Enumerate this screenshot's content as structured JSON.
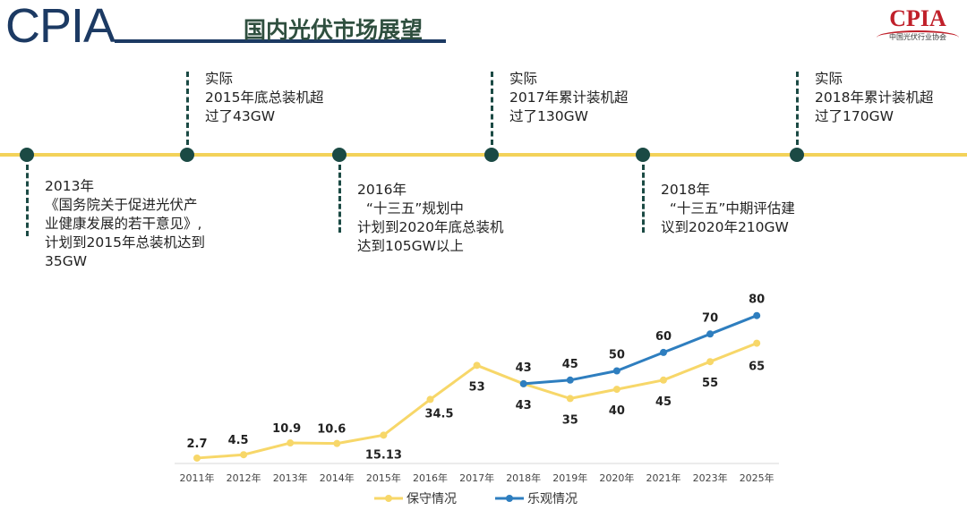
{
  "header": {
    "logo": "CPIA",
    "title": "国内光伏市场展望"
  },
  "brand_logo": {
    "text": "CPIA",
    "subtitle": "中国光伏行业协会"
  },
  "timeline": [
    {
      "pos": "below",
      "text": "2013年\n《国务院关于促进光伏产\n业健康发展的若干意见》,\n计划到2015年总装机达到\n35GW"
    },
    {
      "pos": "above",
      "text": "实际\n2015年底总装机超\n过了43GW"
    },
    {
      "pos": "below",
      "text": "2016年\n  “十三五”规划中\n计划到2020年底总装机\n达到105GW以上"
    },
    {
      "pos": "above",
      "text": "实际\n2017年累计装机超\n过了130GW"
    },
    {
      "pos": "below",
      "text": "2018年\n  “十三五”中期评估建\n议到2020年210GW"
    },
    {
      "pos": "above",
      "text": "实际\n2018年累计装机超\n过了170GW"
    }
  ],
  "colors": {
    "conservative": "#f7d769",
    "optimistic": "#2e7ebf",
    "timeline": "#f3d25a",
    "node": "#1b4a44"
  },
  "chart_data": {
    "type": "line",
    "categories": [
      "2011年",
      "2012年",
      "2013年",
      "2014年",
      "2015年",
      "2016年",
      "2017年",
      "2018年",
      "2019年",
      "2020年",
      "2021年",
      "2023年",
      "2025年"
    ],
    "series": [
      {
        "name": "保守情况",
        "values": [
          2.7,
          4.5,
          10.9,
          10.6,
          15.13,
          34.5,
          53,
          43,
          35,
          40,
          45,
          55,
          65
        ]
      },
      {
        "name": "乐观情况",
        "values": [
          null,
          null,
          null,
          null,
          null,
          null,
          null,
          43,
          45,
          50,
          60,
          70,
          80
        ]
      }
    ],
    "ylim": [
      0,
      85
    ],
    "grid": false,
    "legend": "bottom"
  }
}
